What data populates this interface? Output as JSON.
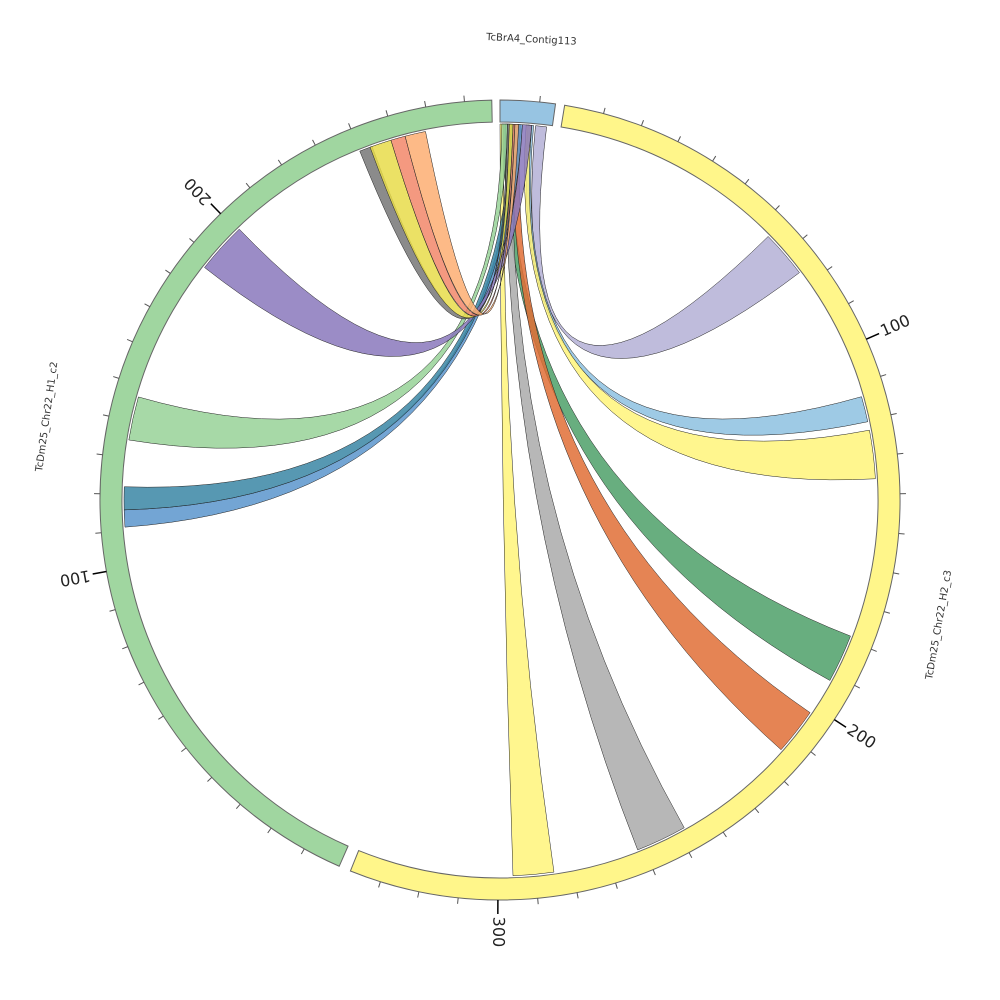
{
  "diagram": {
    "type": "chord",
    "sequences": [
      {
        "name": "TcBrA4_Contig113",
        "length": 14,
        "color": "#97c4e2",
        "tick_labels": []
      },
      {
        "name": "TcDm25_Chr22_H2_c3",
        "length": 338,
        "color": "#fff68a",
        "tick_labels": [
          "100",
          "200",
          "300"
        ]
      },
      {
        "name": "TcDm25_Chr22_H1_c2",
        "length": 277,
        "color": "#a0d6a0",
        "tick_labels": [
          "100",
          "200"
        ]
      }
    ],
    "links": [
      {
        "src": [
          9.5,
          12.5
        ],
        "target": "TcDm25_Chr22_H2_c3",
        "range": [
          63.5,
          76.3
        ],
        "color": "#b4b0d6"
      },
      {
        "src": [
          7.5,
          9.0
        ],
        "target": "TcDm25_Chr22_H2_c3",
        "range": [
          113.6,
          120.5
        ],
        "color": "#8dc1e0"
      },
      {
        "src": [
          7.0,
          8.5
        ],
        "target": "TcDm25_Chr22_H2_c3",
        "range": [
          122.8,
          135.9
        ],
        "color": "#fff47a"
      },
      {
        "src": [
          1.0,
          3.0
        ],
        "target": "TcDm25_Chr22_H2_c3",
        "range": [
          178.8,
          191.9
        ],
        "color": "#4ea068"
      },
      {
        "src": [
          3.5,
          5.5
        ],
        "target": "TcDm25_Chr22_H2_c3",
        "range": [
          202.0,
          214.6
        ],
        "color": "#e06e36"
      },
      {
        "src": [
          1.5,
          3.5
        ],
        "target": "TcDm25_Chr22_H2_c3",
        "range": [
          248.0,
          261.8
        ],
        "color": "#aaaaaa"
      },
      {
        "src": [
          0.0,
          1.0
        ],
        "target": "TcDm25_Chr22_H2_c3",
        "range": [
          285.0,
          296.0
        ],
        "color": "#fff47a"
      },
      {
        "src": [
          4.0,
          6.0
        ],
        "target": "TcDm25_Chr22_H1_c2",
        "range": [
          111.0,
          115.7
        ],
        "color": "#5a95cc"
      },
      {
        "src": [
          3.0,
          5.0
        ],
        "target": "TcDm25_Chr22_H1_c2",
        "range": [
          115.7,
          122.0
        ],
        "color": "#3a86a4"
      },
      {
        "src": [
          0.5,
          2.0
        ],
        "target": "TcDm25_Chr22_H1_c2",
        "range": [
          134.8,
          146.8
        ],
        "color": "#98d298"
      },
      {
        "src": [
          6.0,
          8.5
        ],
        "target": "TcDm25_Chr22_H1_c2",
        "range": [
          186.6,
          200.7
        ],
        "color": "#8a78bc"
      },
      {
        "src": [
          2.0,
          2.5
        ],
        "target": "TcDm25_Chr22_H1_c2",
        "range": [
          240.0,
          243.6
        ],
        "color": "#777777"
      },
      {
        "src": [
          2.5,
          3.5
        ],
        "target": "TcDm25_Chr22_H1_c2",
        "range": [
          243.0,
          249.0
        ],
        "color": "#e8dc4a"
      },
      {
        "src": [
          3.5,
          4.0
        ],
        "target": "TcDm25_Chr22_H1_c2",
        "range": [
          249.0,
          253.0
        ],
        "color": "#f2876a"
      },
      {
        "src": [
          4.0,
          5.0
        ],
        "target": "TcDm25_Chr22_H1_c2",
        "range": [
          253.0,
          258.7
        ],
        "color": "#fdae72"
      }
    ]
  }
}
